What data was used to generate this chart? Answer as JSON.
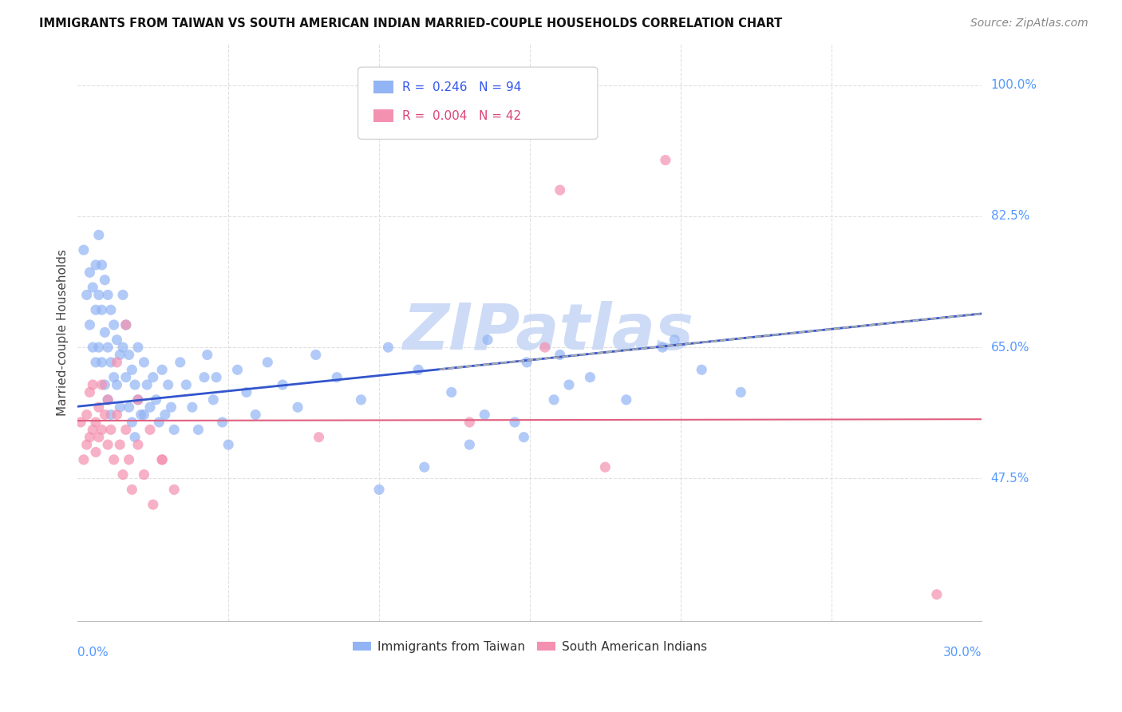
{
  "title": "IMMIGRANTS FROM TAIWAN VS SOUTH AMERICAN INDIAN MARRIED-COUPLE HOUSEHOLDS CORRELATION CHART",
  "source": "Source: ZipAtlas.com",
  "ylabel": "Married-couple Households",
  "legend_label_taiwan": "Immigrants from Taiwan",
  "legend_label_south": "South American Indians",
  "taiwan_color": "#92b4f4",
  "south_color": "#f490b0",
  "trendline_taiwan_color": "#3355cc",
  "trendline_south_color": "#e06080",
  "trendline_gray_color": "#aaaaaa",
  "watermark_color": "#c8d8f5",
  "background_color": "#ffffff",
  "grid_color": "#e0e0e0",
  "axis_label_color": "#5599ff",
  "title_color": "#111111",
  "source_color": "#888888",
  "ylabel_color": "#444444",
  "legend_text_color_taiwan": "#3355ee",
  "legend_text_color_south": "#dd4477",
  "x_min": 0.0,
  "x_max": 0.3,
  "y_min": 0.285,
  "y_max": 1.055,
  "ytick_values": [
    1.0,
    0.825,
    0.65,
    0.475
  ],
  "ytick_labels": [
    "100.0%",
    "82.5%",
    "65.0%",
    "47.5%"
  ],
  "taiwan_trendline": [
    0.571,
    0.695
  ],
  "south_trendline": [
    0.552,
    0.554
  ],
  "taiwan_x": [
    0.002,
    0.003,
    0.004,
    0.004,
    0.005,
    0.005,
    0.006,
    0.006,
    0.006,
    0.007,
    0.007,
    0.007,
    0.008,
    0.008,
    0.008,
    0.009,
    0.009,
    0.009,
    0.01,
    0.01,
    0.01,
    0.011,
    0.011,
    0.011,
    0.012,
    0.012,
    0.013,
    0.013,
    0.014,
    0.014,
    0.015,
    0.015,
    0.016,
    0.016,
    0.017,
    0.017,
    0.018,
    0.018,
    0.019,
    0.019,
    0.02,
    0.02,
    0.021,
    0.022,
    0.022,
    0.023,
    0.024,
    0.025,
    0.026,
    0.027,
    0.028,
    0.029,
    0.03,
    0.031,
    0.032,
    0.034,
    0.036,
    0.038,
    0.04,
    0.042,
    0.045,
    0.048,
    0.05,
    0.053,
    0.056,
    0.059,
    0.063,
    0.068,
    0.073,
    0.079,
    0.086,
    0.094,
    0.103,
    0.113,
    0.124,
    0.136,
    0.149,
    0.163,
    0.135,
    0.148,
    0.16,
    0.17,
    0.182,
    0.194,
    0.207,
    0.22,
    0.198,
    0.1,
    0.115,
    0.13,
    0.145,
    0.158,
    0.043,
    0.046
  ],
  "taiwan_y": [
    0.78,
    0.72,
    0.68,
    0.75,
    0.65,
    0.73,
    0.63,
    0.7,
    0.76,
    0.8,
    0.72,
    0.65,
    0.7,
    0.76,
    0.63,
    0.74,
    0.67,
    0.6,
    0.72,
    0.65,
    0.58,
    0.7,
    0.63,
    0.56,
    0.68,
    0.61,
    0.66,
    0.6,
    0.64,
    0.57,
    0.72,
    0.65,
    0.68,
    0.61,
    0.64,
    0.57,
    0.62,
    0.55,
    0.6,
    0.53,
    0.65,
    0.58,
    0.56,
    0.63,
    0.56,
    0.6,
    0.57,
    0.61,
    0.58,
    0.55,
    0.62,
    0.56,
    0.6,
    0.57,
    0.54,
    0.63,
    0.6,
    0.57,
    0.54,
    0.61,
    0.58,
    0.55,
    0.52,
    0.62,
    0.59,
    0.56,
    0.63,
    0.6,
    0.57,
    0.64,
    0.61,
    0.58,
    0.65,
    0.62,
    0.59,
    0.66,
    0.63,
    0.6,
    0.56,
    0.53,
    0.64,
    0.61,
    0.58,
    0.65,
    0.62,
    0.59,
    0.66,
    0.46,
    0.49,
    0.52,
    0.55,
    0.58,
    0.64,
    0.61
  ],
  "south_x": [
    0.001,
    0.002,
    0.003,
    0.003,
    0.004,
    0.004,
    0.005,
    0.005,
    0.006,
    0.006,
    0.007,
    0.007,
    0.008,
    0.008,
    0.009,
    0.01,
    0.01,
    0.011,
    0.012,
    0.013,
    0.014,
    0.015,
    0.016,
    0.017,
    0.018,
    0.02,
    0.022,
    0.025,
    0.028,
    0.032,
    0.013,
    0.016,
    0.02,
    0.024,
    0.028,
    0.155,
    0.175,
    0.13,
    0.195,
    0.285,
    0.16,
    0.08
  ],
  "south_y": [
    0.55,
    0.5,
    0.56,
    0.52,
    0.53,
    0.59,
    0.54,
    0.6,
    0.55,
    0.51,
    0.57,
    0.53,
    0.54,
    0.6,
    0.56,
    0.52,
    0.58,
    0.54,
    0.5,
    0.56,
    0.52,
    0.48,
    0.54,
    0.5,
    0.46,
    0.52,
    0.48,
    0.44,
    0.5,
    0.46,
    0.63,
    0.68,
    0.58,
    0.54,
    0.5,
    0.65,
    0.49,
    0.55,
    0.9,
    0.32,
    0.86,
    0.53
  ]
}
